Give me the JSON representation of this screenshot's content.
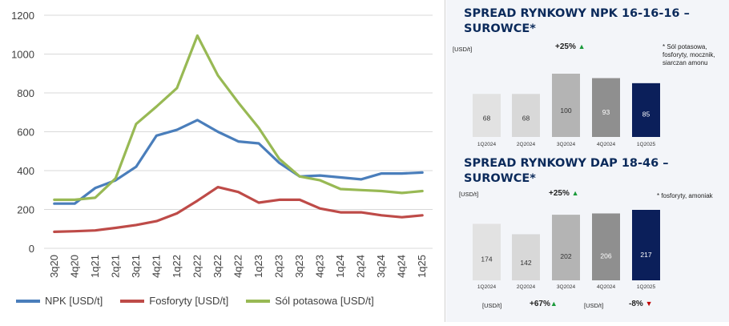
{
  "chart_data": [
    {
      "type": "line",
      "categories": [
        "3q20",
        "4q20",
        "1q21",
        "2q21",
        "3q21",
        "4q21",
        "1q22",
        "2q22",
        "3q22",
        "4q22",
        "1q23",
        "2q23",
        "3q23",
        "4q23",
        "1q24",
        "2q24",
        "3q24",
        "4q24",
        "1q25"
      ],
      "series": [
        {
          "name": "NPK  [USD/t]",
          "color": "#4a7ebb",
          "values": [
            230,
            230,
            310,
            350,
            420,
            580,
            610,
            660,
            600,
            550,
            540,
            440,
            370,
            375,
            365,
            355,
            385,
            385,
            390
          ]
        },
        {
          "name": "Fosforyty [USD/t]",
          "color": "#be4b48",
          "values": [
            85,
            88,
            92,
            105,
            120,
            140,
            180,
            245,
            315,
            290,
            235,
            250,
            250,
            205,
            185,
            185,
            170,
            160,
            170
          ]
        },
        {
          "name": "Sól potasowa [USD/t]",
          "color": "#98b954",
          "values": [
            250,
            250,
            260,
            360,
            640,
            730,
            825,
            1095,
            890,
            750,
            620,
            460,
            370,
            350,
            305,
            300,
            295,
            285,
            295
          ]
        }
      ],
      "ylim": [
        0,
        1200
      ],
      "yticks": [
        0,
        200,
        400,
        600,
        800,
        1000,
        1200
      ],
      "grid": true,
      "legend": "bottom"
    },
    {
      "type": "bar",
      "title": "SPREAD RYNKOWY NPK 16-16-16 – SUROWCE*",
      "unit": "[USD/t]",
      "change": "+25%",
      "note": "* Sól potasowa, fosforyty, mocznik, siarczan amonu",
      "categories": [
        "1Q2024",
        "2Q2024",
        "3Q2024",
        "4Q2024",
        "1Q2025"
      ],
      "values": [
        68,
        68,
        100,
        93,
        85
      ],
      "colors": [
        "#e2e2e2",
        "#d8d8d8",
        "#b4b4b4",
        "#8f8f8f",
        "#0b1f5a"
      ],
      "ylim": [
        0,
        100
      ]
    },
    {
      "type": "bar",
      "title": "SPREAD RYNKOWY DAP 18-46 – SUROWCE*",
      "unit": "[USD/t]",
      "change": "+25%",
      "note": "* fosforyty, amoniak",
      "categories": [
        "1Q2024",
        "2Q2024",
        "3Q2024",
        "4Q2024",
        "1Q2025"
      ],
      "values": [
        174,
        142,
        202,
        206,
        217
      ],
      "colors": [
        "#e2e2e2",
        "#d8d8d8",
        "#b4b4b4",
        "#8f8f8f",
        "#0b1f5a"
      ],
      "ylim": [
        0,
        217
      ]
    }
  ],
  "footer": {
    "left_unit": "[USD/t]",
    "left_change": "+67%",
    "left_arrow": "▲",
    "right_unit": "[USD/t]",
    "right_change": "-8%",
    "right_arrow": "▼"
  },
  "arrow_up": "▲"
}
